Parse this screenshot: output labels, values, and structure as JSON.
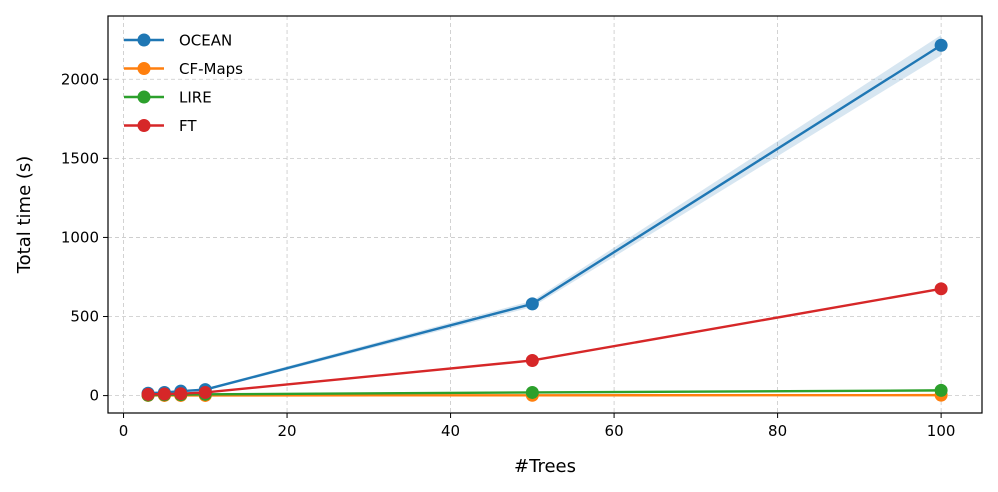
{
  "chart_data": {
    "type": "line",
    "xlabel": "#Trees",
    "ylabel": "Total time (s)",
    "xlim": [
      -1.9,
      105
    ],
    "ylim": [
      -110,
      2400
    ],
    "xticks": [
      0,
      20,
      40,
      60,
      80,
      100
    ],
    "yticks": [
      0,
      500,
      1000,
      1500,
      2000
    ],
    "grid": true,
    "legend_position": "top-left",
    "x": [
      3,
      5,
      7,
      10,
      50,
      100
    ],
    "series": [
      {
        "name": "OCEAN",
        "color": "#1f77b4",
        "values": [
          15,
          20,
          28,
          38,
          580,
          2215
        ],
        "band_low": [
          10,
          15,
          22,
          30,
          560,
          2150
        ],
        "band_high": [
          20,
          25,
          34,
          46,
          600,
          2280
        ]
      },
      {
        "name": "CF-Maps",
        "color": "#ff7f0e",
        "values": [
          1,
          1,
          1,
          1,
          2,
          3
        ]
      },
      {
        "name": "LIRE",
        "color": "#2ca02c",
        "values": [
          3,
          5,
          6,
          8,
          20,
          33
        ]
      },
      {
        "name": "FT",
        "color": "#d62728",
        "values": [
          8,
          10,
          12,
          20,
          222,
          675
        ]
      }
    ]
  }
}
